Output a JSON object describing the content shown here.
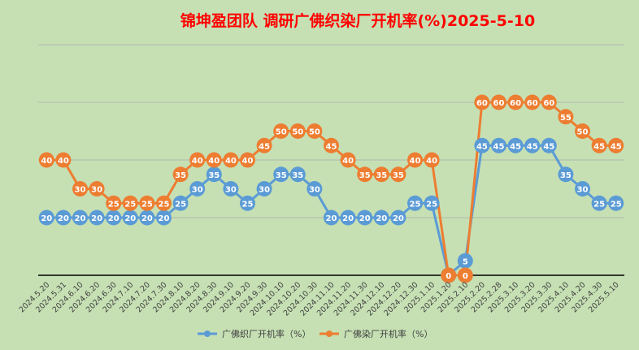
{
  "chart_data": {
    "type": "line",
    "title": "锦坤盈团队 调研广佛织染厂开机率(%)2025-5-10",
    "xlabel": "",
    "ylabel": "",
    "ylim": [
      0,
      80
    ],
    "grid": true,
    "legend_position": "bottom",
    "categories": [
      "2024.5.20",
      "2024.5.31",
      "2024.6.10",
      "2024.6.20",
      "2024.6.30",
      "2024.7.10",
      "2024.7.20",
      "2024.7.30",
      "2024.8.10",
      "2024.8.20",
      "2024.8.30",
      "2024.9.10",
      "2024.9.20",
      "2024.9.30",
      "2024.10.10",
      "2024.10.20",
      "2024.10.30",
      "2024.11.10",
      "2024.11.20",
      "2024.11.30",
      "2024.12.10",
      "2024.12.20",
      "2024.12.30",
      "2025.1.10",
      "2025.1.20",
      "2025.2.10",
      "2025.2.20",
      "2025.2.28",
      "2025.3.10",
      "2025.3.20",
      "2025.3.30",
      "2025.4.10",
      "2025.4.20",
      "2025.4.30",
      "2025.5.10"
    ],
    "series": [
      {
        "name": "广佛织厂开机率（%）",
        "color": "#5b9bd5",
        "values": [
          20,
          20,
          20,
          20,
          20,
          20,
          20,
          20,
          25,
          30,
          35,
          30,
          25,
          30,
          35,
          35,
          30,
          20,
          20,
          20,
          20,
          20,
          25,
          25,
          0,
          5,
          45,
          45,
          45,
          45,
          45,
          35,
          30,
          25,
          25
        ]
      },
      {
        "name": "广佛染厂开机率（%）",
        "color": "#ed7d31",
        "values": [
          40,
          40,
          30,
          30,
          25,
          25,
          25,
          25,
          35,
          40,
          40,
          40,
          40,
          45,
          50,
          50,
          50,
          45,
          40,
          35,
          35,
          35,
          40,
          40,
          0,
          0,
          60,
          60,
          60,
          60,
          60,
          55,
          50,
          45,
          45
        ]
      }
    ],
    "title_color": "#ff0000",
    "background_color": "#c6e0b4"
  }
}
